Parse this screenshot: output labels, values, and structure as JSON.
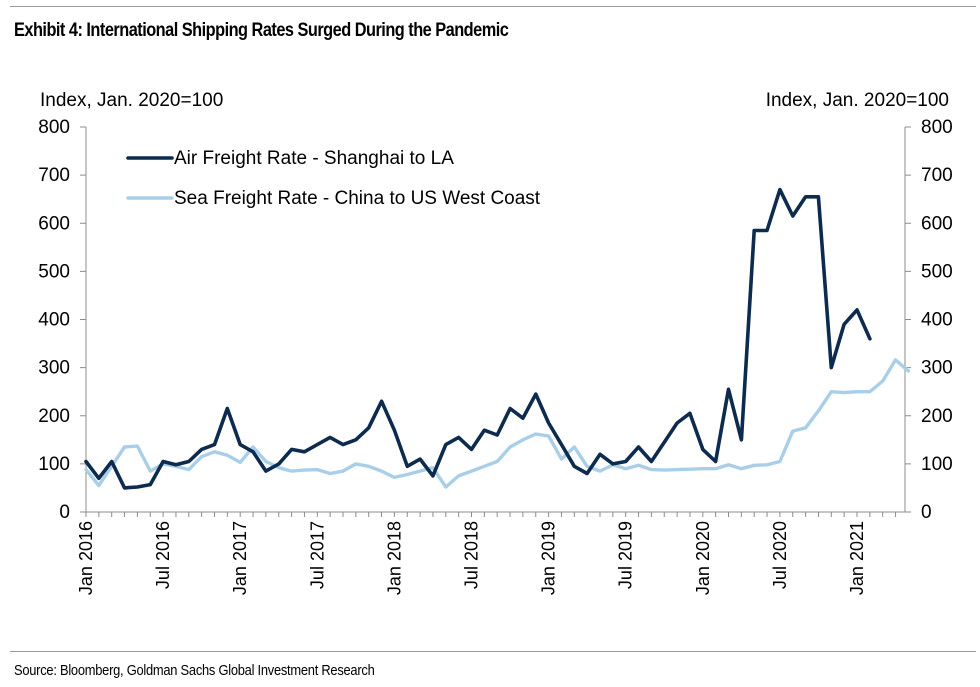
{
  "title": "Exhibit 4: International Shipping Rates Surged During the Pandemic",
  "source": "Source: Bloomberg, Goldman Sachs Global Investment Research",
  "chart_data": {
    "type": "line",
    "title": "Exhibit 4: International Shipping Rates Surged During the Pandemic",
    "ylabel_left": "Index, Jan. 2020=100",
    "ylabel_right": "Index, Jan. 2020=100",
    "ylim": [
      0,
      800
    ],
    "yticks": [
      0,
      100,
      200,
      300,
      400,
      500,
      600,
      700,
      800
    ],
    "yticks_labels": [
      "0",
      "100",
      "200",
      "300",
      "400",
      "500",
      "600",
      "700",
      "800"
    ],
    "x_start": "Jan 2016",
    "x_period": "monthly",
    "x_tick_labels": [
      "Jan 2016",
      "Jul 2016",
      "Jan 2017",
      "Jul 2017",
      "Jan 2018",
      "Jul 2018",
      "Jan 2019",
      "Jul 2019",
      "Jan 2020",
      "Jul 2020",
      "Jan 2021"
    ],
    "x_tick_index": [
      0,
      6,
      12,
      18,
      24,
      30,
      36,
      42,
      48,
      54,
      60
    ],
    "legend_position": "top-left",
    "series": [
      {
        "name": "Air Freight Rate - Shanghai to LA",
        "color": "#0d2b4e",
        "values": [
          105,
          70,
          105,
          50,
          52,
          57,
          105,
          98,
          105,
          130,
          140,
          215,
          140,
          125,
          85,
          100,
          130,
          125,
          140,
          155,
          140,
          150,
          175,
          230,
          170,
          95,
          110,
          75,
          140,
          155,
          130,
          170,
          160,
          215,
          195,
          245,
          185,
          140,
          95,
          80,
          120,
          100,
          105,
          135,
          105,
          145,
          185,
          205,
          130,
          105,
          255,
          150,
          585,
          585,
          670,
          615,
          655,
          655,
          300,
          390,
          420,
          360
        ]
      },
      {
        "name": "Sea Freight Rate - China to US West Coast",
        "color": "#a9cfe8",
        "values": [
          88,
          55,
          95,
          135,
          137,
          85,
          100,
          95,
          88,
          115,
          125,
          118,
          103,
          135,
          105,
          92,
          85,
          87,
          88,
          80,
          85,
          100,
          95,
          85,
          72,
          78,
          85,
          92,
          52,
          75,
          85,
          95,
          105,
          135,
          150,
          162,
          158,
          110,
          135,
          95,
          85,
          98,
          90,
          97,
          88,
          87,
          88,
          89,
          90,
          90,
          98,
          90,
          97,
          98,
          105,
          168,
          175,
          210,
          250,
          248,
          250,
          250,
          272,
          316,
          293
        ]
      }
    ]
  }
}
